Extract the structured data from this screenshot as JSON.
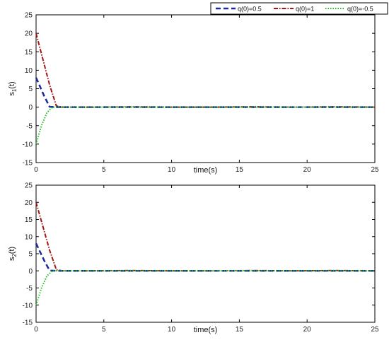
{
  "legend": [
    {
      "label": "q(0)=0.5",
      "color": "#1a2a9c",
      "dash": "7,4"
    },
    {
      "label": "q(0)=1",
      "color": "#a31515",
      "dash": "6,2,1.5,2"
    },
    {
      "label": "q(0)=-0.5",
      "color": "#22c01e",
      "dash": "1.5,2"
    }
  ],
  "chart_data": [
    {
      "type": "line",
      "xlabel": "time(s)",
      "ylabel_main": "s",
      "ylabel_sub": "1",
      "ylabel_suffix": "(t)",
      "xlim": [
        0,
        25
      ],
      "ylim": [
        -15,
        25
      ],
      "xticks": [
        0,
        5,
        10,
        15,
        20,
        25
      ],
      "yticks": [
        -15,
        -10,
        -5,
        0,
        5,
        10,
        15,
        20,
        25
      ],
      "grid": false,
      "series": [
        {
          "name": "q(0)=0.5",
          "x": [
            0,
            0.6,
            1.0,
            1.5,
            3,
            6,
            9,
            12,
            15,
            18,
            21,
            25
          ],
          "y": [
            8,
            3,
            0.1,
            0,
            0,
            0,
            0,
            0,
            0,
            0,
            0,
            0
          ]
        },
        {
          "name": "q(0)=1",
          "x": [
            0,
            0.5,
            1.0,
            1.5,
            2,
            4,
            7,
            10,
            13,
            16,
            19,
            22,
            25
          ],
          "y": [
            20,
            13,
            6,
            0.3,
            0,
            0,
            0.1,
            0,
            0,
            0.1,
            0,
            0.1,
            0
          ]
        },
        {
          "name": "q(0)=-0.5",
          "x": [
            0,
            0.4,
            0.8,
            1.2,
            2,
            5,
            8,
            11,
            14,
            17,
            20,
            25
          ],
          "y": [
            -10,
            -5,
            -1.5,
            0,
            0,
            0,
            0,
            0,
            0,
            0,
            0,
            0
          ]
        }
      ]
    },
    {
      "type": "line",
      "xlabel": "time(s)",
      "ylabel_main": "s",
      "ylabel_sub": "2",
      "ylabel_suffix": "(t)",
      "xlim": [
        0,
        25
      ],
      "ylim": [
        -15,
        25
      ],
      "xticks": [
        0,
        5,
        10,
        15,
        20,
        25
      ],
      "yticks": [
        -15,
        -10,
        -5,
        0,
        5,
        10,
        15,
        20,
        25
      ],
      "grid": false,
      "series": [
        {
          "name": "q(0)=0.5",
          "x": [
            0,
            0.6,
            1.0,
            1.5,
            3,
            6,
            9,
            12,
            15,
            18,
            21,
            25
          ],
          "y": [
            8,
            3,
            0.1,
            0,
            0,
            0,
            0,
            0,
            0,
            0,
            0,
            0
          ]
        },
        {
          "name": "q(0)=1",
          "x": [
            0,
            0.5,
            1.0,
            1.5,
            2,
            4,
            7,
            10,
            13,
            16,
            19,
            22,
            25
          ],
          "y": [
            20,
            13,
            6,
            0.3,
            0,
            0,
            0.1,
            0,
            0,
            0.1,
            0,
            0.1,
            0
          ]
        },
        {
          "name": "q(0)=-0.5",
          "x": [
            0,
            0.4,
            0.8,
            1.2,
            2,
            5,
            8,
            11,
            14,
            17,
            20,
            25
          ],
          "y": [
            -10,
            -5,
            -1.5,
            0,
            0,
            0,
            0,
            0,
            0,
            0,
            0,
            0
          ]
        }
      ]
    }
  ]
}
